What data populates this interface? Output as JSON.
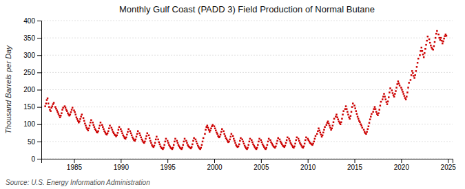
{
  "chart_data": {
    "type": "scatter",
    "title": "Monthly Gulf Coast (PADD 3) Field Production of Normal Butane",
    "ylabel": "Thousand Barrels per Day",
    "annotations": [
      "Source: U.S. Energy Information Administration"
    ],
    "color": "#cc0000",
    "marker": "square",
    "grid": "y",
    "xlim": [
      1981.5,
      2025.5
    ],
    "ylim": [
      0,
      400
    ],
    "xticks": [
      1985,
      1990,
      1995,
      2000,
      2005,
      2010,
      2015,
      2020,
      2025
    ],
    "yticks": [
      0,
      50,
      100,
      150,
      200,
      250,
      300,
      350,
      400
    ],
    "x": [
      1981.917,
      1982.0,
      1982.083,
      1982.167,
      1982.25,
      1982.333,
      1982.417,
      1982.5,
      1982.583,
      1982.667,
      1982.75,
      1982.833,
      1983.0,
      1983.083,
      1983.167,
      1983.25,
      1983.333,
      1983.417,
      1983.5,
      1983.583,
      1983.667,
      1983.75,
      1983.833,
      1984.0,
      1984.083,
      1984.167,
      1984.25,
      1984.333,
      1984.417,
      1984.5,
      1984.583,
      1984.667,
      1984.75,
      1984.833,
      1985.0,
      1985.083,
      1985.167,
      1985.25,
      1985.333,
      1985.417,
      1985.5,
      1985.583,
      1985.667,
      1985.75,
      1985.833,
      1986.0,
      1986.083,
      1986.167,
      1986.25,
      1986.333,
      1986.417,
      1986.5,
      1986.583,
      1986.667,
      1986.75,
      1986.833,
      1987.0,
      1987.083,
      1987.167,
      1987.25,
      1987.333,
      1987.417,
      1987.5,
      1987.583,
      1987.667,
      1987.75,
      1987.833,
      1988.0,
      1988.083,
      1988.167,
      1988.25,
      1988.333,
      1988.417,
      1988.5,
      1988.583,
      1988.667,
      1988.75,
      1988.833,
      1989.0,
      1989.083,
      1989.167,
      1989.25,
      1989.333,
      1989.417,
      1989.5,
      1989.583,
      1989.667,
      1989.75,
      1989.833,
      1990.0,
      1990.083,
      1990.167,
      1990.25,
      1990.333,
      1990.417,
      1990.5,
      1990.583,
      1990.667,
      1990.75,
      1990.833,
      1991.0,
      1991.083,
      1991.167,
      1991.25,
      1991.333,
      1991.417,
      1991.5,
      1991.583,
      1991.667,
      1991.75,
      1991.833,
      1992.0,
      1992.083,
      1992.167,
      1992.25,
      1992.333,
      1992.417,
      1992.5,
      1992.583,
      1992.667,
      1992.75,
      1992.833,
      1993.0,
      1993.083,
      1993.167,
      1993.25,
      1993.333,
      1993.417,
      1993.5,
      1993.583,
      1993.667,
      1993.75,
      1993.833,
      1994.0,
      1994.083,
      1994.167,
      1994.25,
      1994.333,
      1994.417,
      1994.5,
      1994.583,
      1994.667,
      1994.75,
      1994.833,
      1995.0,
      1995.083,
      1995.167,
      1995.25,
      1995.333,
      1995.417,
      1995.5,
      1995.583,
      1995.667,
      1995.75,
      1995.833,
      1996.0,
      1996.083,
      1996.167,
      1996.25,
      1996.333,
      1996.417,
      1996.5,
      1996.583,
      1996.667,
      1996.75,
      1996.833,
      1997.0,
      1997.083,
      1997.167,
      1997.25,
      1997.333,
      1997.417,
      1997.5,
      1997.583,
      1997.667,
      1997.75,
      1997.833,
      1998.0,
      1998.083,
      1998.167,
      1998.25,
      1998.333,
      1998.417,
      1998.5,
      1998.583,
      1998.667,
      1998.75,
      1998.833,
      1999.0,
      1999.083,
      1999.167,
      1999.25,
      1999.333,
      1999.417,
      1999.5,
      1999.583,
      1999.667,
      1999.75,
      1999.833,
      2000.0,
      2000.083,
      2000.167,
      2000.25,
      2000.333,
      2000.417,
      2000.5,
      2000.583,
      2000.667,
      2000.75,
      2000.833,
      2001.0,
      2001.083,
      2001.167,
      2001.25,
      2001.333,
      2001.417,
      2001.5,
      2001.583,
      2001.667,
      2001.75,
      2001.833,
      2002.0,
      2002.083,
      2002.167,
      2002.25,
      2002.333,
      2002.417,
      2002.5,
      2002.583,
      2002.667,
      2002.75,
      2002.833,
      2003.0,
      2003.083,
      2003.167,
      2003.25,
      2003.333,
      2003.417,
      2003.5,
      2003.583,
      2003.667,
      2003.75,
      2003.833,
      2004.0,
      2004.083,
      2004.167,
      2004.25,
      2004.333,
      2004.417,
      2004.5,
      2004.583,
      2004.667,
      2004.75,
      2004.833,
      2005.0,
      2005.083,
      2005.167,
      2005.25,
      2005.333,
      2005.417,
      2005.5,
      2005.583,
      2005.667,
      2005.75,
      2005.833,
      2006.0,
      2006.083,
      2006.167,
      2006.25,
      2006.333,
      2006.417,
      2006.5,
      2006.583,
      2006.667,
      2006.75,
      2006.833,
      2007.0,
      2007.083,
      2007.167,
      2007.25,
      2007.333,
      2007.417,
      2007.5,
      2007.583,
      2007.667,
      2007.75,
      2007.833,
      2008.0,
      2008.083,
      2008.167,
      2008.25,
      2008.333,
      2008.417,
      2008.5,
      2008.583,
      2008.667,
      2008.75,
      2008.833,
      2009.0,
      2009.083,
      2009.167,
      2009.25,
      2009.333,
      2009.417,
      2009.5,
      2009.583,
      2009.667,
      2009.75,
      2009.833,
      2010.0,
      2010.083,
      2010.167,
      2010.25,
      2010.333,
      2010.417,
      2010.5,
      2010.583,
      2010.667,
      2010.75,
      2010.833,
      2011.0,
      2011.083,
      2011.167,
      2011.25,
      2011.333,
      2011.417,
      2011.5,
      2011.583,
      2011.667,
      2011.75,
      2011.833,
      2012.0,
      2012.083,
      2012.167,
      2012.25,
      2012.333,
      2012.417,
      2012.5,
      2012.583,
      2012.667,
      2012.75,
      2012.833,
      2013.0,
      2013.083,
      2013.167,
      2013.25,
      2013.333,
      2013.417,
      2013.5,
      2013.583,
      2013.667,
      2013.75,
      2013.833,
      2014.0,
      2014.083,
      2014.167,
      2014.25,
      2014.333,
      2014.417,
      2014.5,
      2014.583,
      2014.667,
      2014.75,
      2014.833,
      2015.0,
      2015.083,
      2015.167,
      2015.25,
      2015.333,
      2015.417,
      2015.5,
      2015.583,
      2015.667,
      2015.75,
      2015.833,
      2016.0,
      2016.083,
      2016.167,
      2016.25,
      2016.333,
      2016.417,
      2016.5,
      2016.583,
      2016.667,
      2016.75,
      2016.833,
      2017.0,
      2017.083,
      2017.167,
      2017.25,
      2017.333,
      2017.417,
      2017.5,
      2017.583,
      2017.667,
      2017.75,
      2017.833,
      2018.0,
      2018.083,
      2018.167,
      2018.25,
      2018.333,
      2018.417,
      2018.5,
      2018.583,
      2018.667,
      2018.75,
      2018.833,
      2019.0,
      2019.083,
      2019.167,
      2019.25,
      2019.333,
      2019.417,
      2019.5,
      2019.583,
      2019.667,
      2019.75,
      2019.833,
      2020.0,
      2020.083,
      2020.167,
      2020.25,
      2020.333,
      2020.417,
      2020.5,
      2020.583,
      2020.667,
      2020.75,
      2020.833,
      2021.0,
      2021.083,
      2021.167,
      2021.25,
      2021.333,
      2021.417,
      2021.5,
      2021.583,
      2021.667,
      2021.75,
      2021.833,
      2022.0,
      2022.083,
      2022.167,
      2022.25,
      2022.333,
      2022.417,
      2022.5,
      2022.583,
      2022.667,
      2022.75,
      2022.833,
      2023.0,
      2023.083,
      2023.167,
      2023.25,
      2023.333,
      2023.417,
      2023.5,
      2023.583,
      2023.667,
      2023.75,
      2023.833,
      2024.0,
      2024.083,
      2024.167,
      2024.25,
      2024.333,
      2024.417,
      2024.5,
      2024.583,
      2024.667,
      2024.75,
      2024.833
    ],
    "values": [
      152,
      160,
      170,
      175,
      160,
      150,
      142,
      138,
      148,
      152,
      158,
      162,
      150,
      145,
      140,
      135,
      130,
      125,
      120,
      125,
      132,
      142,
      148,
      152,
      148,
      142,
      138,
      132,
      128,
      125,
      128,
      135,
      142,
      148,
      140,
      135,
      128,
      120,
      115,
      110,
      105,
      108,
      115,
      122,
      128,
      118,
      110,
      102,
      96,
      90,
      86,
      82,
      88,
      96,
      105,
      112,
      105,
      98,
      92,
      86,
      82,
      78,
      76,
      80,
      88,
      96,
      105,
      98,
      92,
      86,
      80,
      76,
      72,
      70,
      74,
      80,
      88,
      96,
      90,
      84,
      78,
      74,
      70,
      68,
      65,
      68,
      75,
      84,
      92,
      86,
      80,
      74,
      68,
      64,
      60,
      58,
      62,
      70,
      78,
      86,
      80,
      74,
      68,
      62,
      58,
      54,
      52,
      56,
      64,
      72,
      80,
      74,
      68,
      62,
      56,
      52,
      48,
      46,
      50,
      58,
      66,
      74,
      68,
      60,
      52,
      46,
      40,
      36,
      34,
      38,
      46,
      56,
      64,
      56,
      48,
      42,
      36,
      32,
      30,
      28,
      32,
      40,
      50,
      58,
      52,
      46,
      40,
      36,
      32,
      30,
      28,
      32,
      40,
      50,
      58,
      52,
      46,
      40,
      36,
      32,
      30,
      28,
      32,
      40,
      50,
      58,
      52,
      46,
      40,
      36,
      34,
      32,
      30,
      34,
      42,
      52,
      60,
      56,
      50,
      44,
      38,
      34,
      30,
      28,
      32,
      40,
      50,
      60,
      72,
      84,
      92,
      96,
      90,
      84,
      78,
      82,
      88,
      94,
      98,
      94,
      88,
      82,
      76,
      72,
      66,
      62,
      64,
      70,
      78,
      86,
      80,
      72,
      66,
      60,
      56,
      52,
      48,
      50,
      56,
      64,
      72,
      66,
      58,
      52,
      46,
      40,
      36,
      34,
      36,
      42,
      52,
      60,
      56,
      50,
      44,
      38,
      34,
      30,
      28,
      32,
      40,
      50,
      58,
      54,
      48,
      42,
      38,
      34,
      30,
      28,
      32,
      40,
      50,
      58,
      54,
      48,
      42,
      38,
      34,
      30,
      28,
      32,
      40,
      50,
      58,
      54,
      48,
      44,
      40,
      36,
      34,
      32,
      36,
      44,
      52,
      60,
      56,
      50,
      46,
      42,
      38,
      36,
      34,
      38,
      46,
      54,
      62,
      58,
      52,
      46,
      42,
      38,
      34,
      32,
      36,
      44,
      54,
      62,
      58,
      52,
      46,
      42,
      38,
      34,
      32,
      36,
      44,
      54,
      62,
      58,
      54,
      50,
      46,
      44,
      42,
      40,
      44,
      50,
      58,
      66,
      72,
      80,
      88,
      82,
      76,
      70,
      64,
      68,
      76,
      84,
      92,
      98,
      104,
      108,
      102,
      96,
      90,
      84,
      88,
      96,
      106,
      116,
      122,
      128,
      120,
      114,
      108,
      104,
      100,
      106,
      116,
      128,
      138,
      144,
      152,
      144,
      136,
      128,
      120,
      116,
      124,
      136,
      150,
      160,
      154,
      146,
      138,
      130,
      122,
      116,
      110,
      106,
      100,
      96,
      90,
      84,
      78,
      74,
      72,
      78,
      86,
      94,
      104,
      114,
      122,
      130,
      136,
      144,
      150,
      144,
      136,
      130,
      126,
      132,
      142,
      154,
      165,
      172,
      180,
      188,
      180,
      172,
      164,
      158,
      166,
      178,
      192,
      204,
      198,
      190,
      184,
      180,
      188,
      196,
      206,
      216,
      224,
      218,
      212,
      206,
      200,
      194,
      188,
      182,
      176,
      172,
      180,
      192,
      206,
      220,
      228,
      242,
      254,
      248,
      240,
      234,
      242,
      254,
      266,
      278,
      290,
      300,
      312,
      322,
      312,
      302,
      294,
      306,
      318,
      330,
      342,
      354,
      346,
      336,
      328,
      322,
      318,
      316,
      326,
      338,
      350,
      362,
      370,
      360,
      350,
      344,
      350,
      342,
      334,
      340,
      348,
      355,
      360,
      356
    ]
  }
}
